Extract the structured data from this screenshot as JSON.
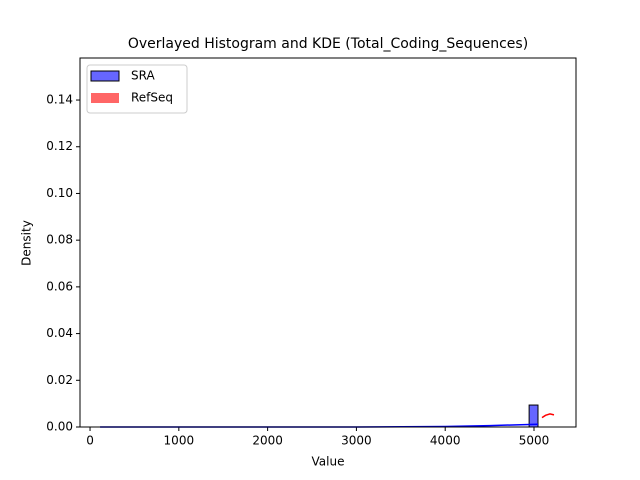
{
  "chart_data": {
    "type": "histogram",
    "title": "Overlayed Histogram and KDE (Total_Coding_Sequences)",
    "xlabel": "Value",
    "ylabel": "Density",
    "xlim": [
      -113,
      5473
    ],
    "ylim": [
      0,
      0.158
    ],
    "xticks": [
      0,
      1000,
      2000,
      3000,
      4000,
      5000
    ],
    "yticks": [
      {
        "value": 0,
        "label": "0.00"
      },
      0.02,
      0.04,
      0.06,
      0.08,
      {
        "value": 0.1,
        "label": "0.10"
      },
      0.12,
      0.14
    ],
    "legend": "upper left",
    "series": [
      {
        "name": "SRA",
        "color": "#0000ff",
        "bins": [
          4945,
          5045
        ],
        "values": [
          0.0094
        ],
        "kde": {
          "x": [
            113,
            1000,
            2000,
            3000,
            4000,
            4500,
            5045
          ],
          "y": [
            0,
            0,
            0,
            0,
            0.0002,
            0.0006,
            0.0012
          ]
        }
      },
      {
        "name": "RefSeq",
        "color": "#ff0000",
        "kde": {
          "x": [
            5090,
            5130,
            5180,
            5225
          ],
          "y": [
            0.004,
            0.005,
            0.0056,
            0.0052
          ]
        }
      }
    ]
  }
}
